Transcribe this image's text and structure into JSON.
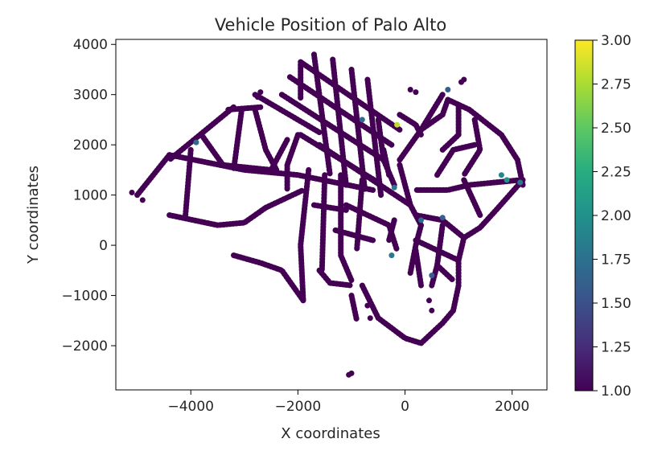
{
  "chart_data": {
    "type": "scatter",
    "title": "Vehicle Position of Palo Alto",
    "xlabel": "X coordinates",
    "ylabel": "Y coordinates",
    "xlim": [
      -5400,
      2650
    ],
    "ylim": [
      -2880,
      4100
    ],
    "xticks": [
      -4000,
      -2000,
      0,
      2000
    ],
    "yticks": [
      -2000,
      -1000,
      0,
      1000,
      2000,
      3000,
      4000
    ],
    "grid": false,
    "colormap": "viridis",
    "colorbar": {
      "range": [
        1.0,
        3.0
      ],
      "ticks": [
        "1.00",
        "1.25",
        "1.50",
        "1.75",
        "2.00",
        "2.25",
        "2.50",
        "2.75",
        "3.00"
      ]
    },
    "road_segments": [
      {
        "points": [
          [
            -1950,
            3650
          ],
          [
            -100,
            2300
          ]
        ],
        "value": 1
      },
      {
        "points": [
          [
            -2150,
            3350
          ],
          [
            -250,
            2000
          ]
        ],
        "value": 1
      },
      {
        "points": [
          [
            -2300,
            3000
          ],
          [
            -400,
            1700
          ]
        ],
        "value": 1
      },
      {
        "points": [
          [
            -1700,
            3800
          ],
          [
            -1400,
            1400
          ]
        ],
        "value": 1
      },
      {
        "points": [
          [
            -1350,
            3700
          ],
          [
            -1100,
            1200
          ]
        ],
        "value": 1
      },
      {
        "points": [
          [
            -1000,
            3500
          ],
          [
            -750,
            1100
          ]
        ],
        "value": 1
      },
      {
        "points": [
          [
            -700,
            3300
          ],
          [
            -450,
            1000
          ]
        ],
        "value": 1
      },
      {
        "points": [
          [
            -1950,
            3600
          ],
          [
            -1950,
            2900
          ]
        ],
        "value": 1
      },
      {
        "points": [
          [
            -2800,
            3000
          ],
          [
            -1600,
            2250
          ]
        ],
        "value": 1
      },
      {
        "points": [
          [
            -1950,
            2200
          ],
          [
            -500,
            1250
          ]
        ],
        "value": 1
      },
      {
        "points": [
          [
            -1600,
            2000
          ],
          [
            100,
            800
          ]
        ],
        "value": 1
      },
      {
        "points": [
          [
            -3300,
            2700
          ],
          [
            -2700,
            2750
          ]
        ],
        "value": 1
      },
      {
        "points": [
          [
            -3200,
            2750
          ],
          [
            -4400,
            1700
          ]
        ],
        "value": 1
      },
      {
        "points": [
          [
            -4400,
            1800
          ],
          [
            -5000,
            1000
          ]
        ],
        "value": 1
      },
      {
        "points": [
          [
            -3800,
            2200
          ],
          [
            -3400,
            1600
          ],
          [
            -2500,
            1500
          ]
        ],
        "value": 1
      },
      {
        "points": [
          [
            -2800,
            2700
          ],
          [
            -2600,
            1900
          ],
          [
            -2400,
            1500
          ]
        ],
        "value": 1
      },
      {
        "points": [
          [
            -2200,
            2100
          ],
          [
            -2500,
            1500
          ]
        ],
        "value": 1
      },
      {
        "points": [
          [
            -3050,
            2700
          ],
          [
            -3200,
            1500
          ]
        ],
        "value": 1
      },
      {
        "points": [
          [
            -4400,
            1800
          ],
          [
            -3000,
            1500
          ],
          [
            -2000,
            1400
          ],
          [
            -600,
            1100
          ]
        ],
        "value": 1
      },
      {
        "points": [
          [
            -2000,
            2200
          ],
          [
            -2200,
            1600
          ],
          [
            -2200,
            1100
          ]
        ],
        "value": 1
      },
      {
        "points": [
          [
            -4000,
            1900
          ],
          [
            -4100,
            600
          ]
        ],
        "value": 1
      },
      {
        "points": [
          [
            -4400,
            600
          ],
          [
            -3500,
            400
          ],
          [
            -3000,
            450
          ],
          [
            -2600,
            750
          ]
        ],
        "value": 1
      },
      {
        "points": [
          [
            -2600,
            750
          ],
          [
            -1900,
            1100
          ]
        ],
        "value": 1
      },
      {
        "points": [
          [
            -3200,
            -200
          ],
          [
            -2700,
            -350
          ],
          [
            -2300,
            -500
          ],
          [
            -1900,
            -1100
          ]
        ],
        "value": 1
      },
      {
        "points": [
          [
            -1800,
            1500
          ],
          [
            -1950,
            0
          ],
          [
            -1900,
            -1100
          ]
        ],
        "value": 1
      },
      {
        "points": [
          [
            -1500,
            1400
          ],
          [
            -1550,
            -500
          ]
        ],
        "value": 1
      },
      {
        "points": [
          [
            -1600,
            -500
          ],
          [
            -1400,
            -750
          ],
          [
            -1000,
            -800
          ]
        ],
        "value": 1
      },
      {
        "points": [
          [
            -1200,
            1400
          ],
          [
            -1200,
            -200
          ],
          [
            -1000,
            -700
          ]
        ],
        "value": 1
      },
      {
        "points": [
          [
            -800,
            1300
          ],
          [
            -900,
            -100
          ]
        ],
        "value": 1
      },
      {
        "points": [
          [
            -1700,
            800
          ],
          [
            -1100,
            700
          ]
        ],
        "value": 1
      },
      {
        "points": [
          [
            -1300,
            300
          ],
          [
            -600,
            100
          ]
        ],
        "value": 1
      },
      {
        "points": [
          [
            -1100,
            800
          ],
          [
            -300,
            400
          ],
          [
            -150,
            -100
          ]
        ],
        "value": 1
      },
      {
        "points": [
          [
            -1000,
            -1000
          ],
          [
            -900,
            -1500
          ]
        ],
        "value": 1
      },
      {
        "points": [
          [
            -800,
            -800
          ],
          [
            -500,
            -1450
          ],
          [
            0,
            -1850
          ],
          [
            300,
            -1950
          ]
        ],
        "value": 1
      },
      {
        "points": [
          [
            -100,
            1600
          ],
          [
            100,
            800
          ],
          [
            300,
            400
          ],
          [
            200,
            0
          ],
          [
            100,
            -550
          ]
        ],
        "value": 1
      },
      {
        "points": [
          [
            -100,
            2600
          ],
          [
            200,
            2400
          ],
          [
            300,
            2200
          ]
        ],
        "value": 1
      },
      {
        "points": [
          [
            -500,
            2500
          ],
          [
            -400,
            1700
          ],
          [
            -200,
            1200
          ]
        ],
        "value": 1
      },
      {
        "points": [
          [
            300,
            2300
          ],
          [
            700,
            2600
          ],
          [
            800,
            2900
          ]
        ],
        "value": 1
      },
      {
        "points": [
          [
            800,
            2900
          ],
          [
            1200,
            2700
          ],
          [
            1800,
            2200
          ],
          [
            2100,
            1700
          ],
          [
            2200,
            1200
          ]
        ],
        "value": 1
      },
      {
        "points": [
          [
            700,
            3000
          ],
          [
            300,
            2300
          ],
          [
            -100,
            1700
          ]
        ],
        "value": 1
      },
      {
        "points": [
          [
            1000,
            2800
          ],
          [
            1000,
            2200
          ],
          [
            700,
            1900
          ]
        ],
        "value": 1
      },
      {
        "points": [
          [
            1300,
            2500
          ],
          [
            1400,
            1900
          ],
          [
            1100,
            1400
          ]
        ],
        "value": 1
      },
      {
        "points": [
          [
            2150,
            1300
          ],
          [
            1200,
            1200
          ],
          [
            800,
            1100
          ],
          [
            200,
            1100
          ]
        ],
        "value": 1
      },
      {
        "points": [
          [
            2200,
            1300
          ],
          [
            1700,
            700
          ],
          [
            1400,
            350
          ],
          [
            1100,
            150
          ],
          [
            700,
            500
          ],
          [
            200,
            600
          ]
        ],
        "value": 1
      },
      {
        "points": [
          [
            1100,
            150
          ],
          [
            1000,
            -300
          ],
          [
            1000,
            -800
          ],
          [
            900,
            -1300
          ],
          [
            700,
            -1550
          ],
          [
            300,
            -1950
          ]
        ],
        "value": 1
      },
      {
        "points": [
          [
            200,
            100
          ],
          [
            800,
            -200
          ],
          [
            1000,
            -300
          ]
        ],
        "value": 1
      },
      {
        "points": [
          [
            700,
            400
          ],
          [
            600,
            -400
          ],
          [
            500,
            -800
          ]
        ],
        "value": 1
      },
      {
        "points": [
          [
            200,
            -100
          ],
          [
            300,
            -800
          ]
        ],
        "value": 1
      },
      {
        "points": [
          [
            600,
            -400
          ],
          [
            900,
            -700
          ]
        ],
        "value": 1
      },
      {
        "points": [
          [
            1100,
            1300
          ],
          [
            1400,
            600
          ]
        ],
        "value": 1
      },
      {
        "points": [
          [
            600,
            1400
          ],
          [
            900,
            1900
          ],
          [
            1300,
            2000
          ]
        ],
        "value": 1
      },
      {
        "points": [
          [
            -300,
            1400
          ],
          [
            -400,
            1900
          ]
        ],
        "value": 1
      },
      {
        "points": [
          [
            -200,
            500
          ],
          [
            -300,
            100
          ]
        ],
        "value": 1
      }
    ],
    "points": [
      {
        "x": -5000,
        "y": 1000,
        "value": 1
      },
      {
        "x": -4900,
        "y": 900,
        "value": 1
      },
      {
        "x": -5100,
        "y": 1050,
        "value": 1
      },
      {
        "x": -1000,
        "y": -2550,
        "value": 1
      },
      {
        "x": -1050,
        "y": -2580,
        "value": 1
      },
      {
        "x": 1100,
        "y": 3300,
        "value": 1
      },
      {
        "x": 1050,
        "y": 3250,
        "value": 1
      },
      {
        "x": 100,
        "y": 3100,
        "value": 1
      },
      {
        "x": 200,
        "y": 3050,
        "value": 1
      },
      {
        "x": -2700,
        "y": 3050,
        "value": 1
      },
      {
        "x": -2750,
        "y": 2950,
        "value": 1
      },
      {
        "x": -700,
        "y": -1200,
        "value": 1
      },
      {
        "x": -650,
        "y": -1450,
        "value": 1
      },
      {
        "x": 450,
        "y": -1100,
        "value": 1
      },
      {
        "x": 500,
        "y": -1300,
        "value": 1
      },
      {
        "x": -800,
        "y": 2500,
        "value": 1.7
      },
      {
        "x": -200,
        "y": 1150,
        "value": 1.8
      },
      {
        "x": 300,
        "y": 500,
        "value": 1.7
      },
      {
        "x": 700,
        "y": 550,
        "value": 1.6
      },
      {
        "x": -250,
        "y": -200,
        "value": 1.8
      },
      {
        "x": 500,
        "y": -600,
        "value": 1.6
      },
      {
        "x": 1800,
        "y": 1400,
        "value": 1.9
      },
      {
        "x": 1900,
        "y": 1300,
        "value": 2.0
      },
      {
        "x": 2150,
        "y": 1250,
        "value": 1.8
      },
      {
        "x": -3900,
        "y": 2050,
        "value": 1.7
      },
      {
        "x": 800,
        "y": 3100,
        "value": 1.6
      },
      {
        "x": -150,
        "y": 2400,
        "value": 2.8
      }
    ]
  }
}
